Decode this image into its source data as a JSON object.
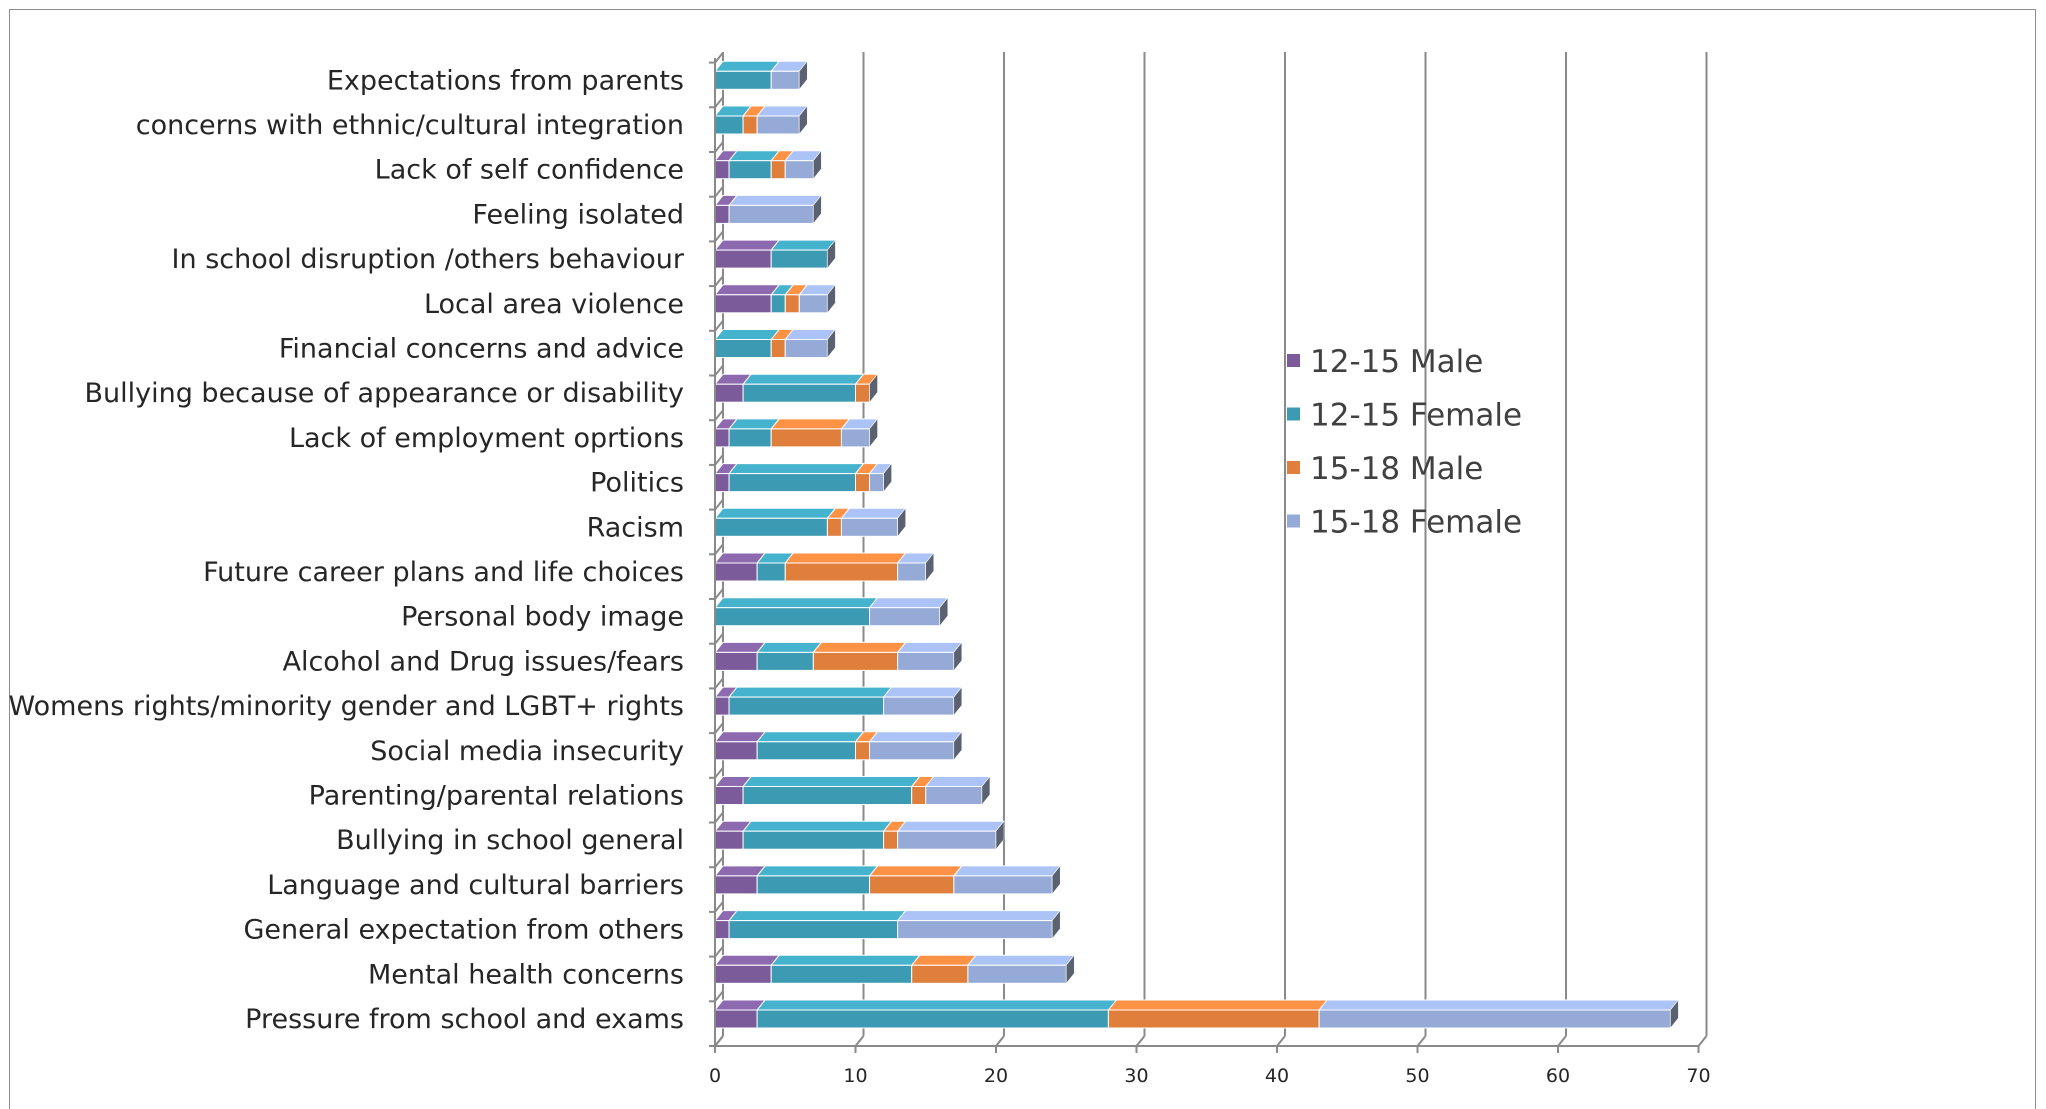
{
  "chart_data": {
    "type": "bar",
    "orientation": "horizontal",
    "stacked": true,
    "categories": [
      "Pressure from school and exams",
      "Mental health concerns",
      "General expectation from others",
      "Language and cultural barriers",
      "Bullying in school general",
      "Parenting/parental relations",
      "Social media insecurity",
      "Womens rights/minority gender and LGBT+ rights",
      "Alcohol and Drug issues/fears",
      "Personal body image",
      "Future career plans and life choices",
      "Racism",
      "Politics",
      "Lack of employment oprtions",
      "Bullying because of appearance or disability",
      "Financial concerns and advice",
      "Local area  violence",
      "In school disruption /others behaviour",
      "Feeling isolated",
      "Lack of self confidence",
      "concerns with ethnic/cultural integration",
      "Expectations from parents"
    ],
    "series": [
      {
        "name": "12-15 Male",
        "color": "#7b5b99",
        "values": [
          3,
          4,
          1,
          3,
          2,
          2,
          3,
          1,
          3,
          0,
          3,
          0,
          1,
          1,
          2,
          0,
          4,
          4,
          1,
          1,
          0,
          0
        ]
      },
      {
        "name": "12-15 Female",
        "color": "#3c9bb3",
        "values": [
          25,
          10,
          12,
          8,
          10,
          12,
          7,
          11,
          4,
          11,
          2,
          8,
          9,
          3,
          8,
          4,
          1,
          4,
          0,
          3,
          2,
          4
        ]
      },
      {
        "name": "15-18 Male",
        "color": "#e07f3c",
        "values": [
          15,
          4,
          0,
          6,
          1,
          1,
          1,
          0,
          6,
          0,
          8,
          1,
          1,
          5,
          1,
          1,
          1,
          0,
          0,
          1,
          1,
          0
        ]
      },
      {
        "name": "15-18 Female",
        "color": "#95aad6",
        "values": [
          25,
          7,
          11,
          7,
          7,
          4,
          6,
          5,
          4,
          5,
          2,
          4,
          1,
          2,
          0,
          3,
          2,
          0,
          6,
          2,
          3,
          2
        ]
      }
    ],
    "x_ticks": [
      "0",
      "10",
      "20",
      "30",
      "40",
      "50",
      "60",
      "70"
    ],
    "xlim": [
      0,
      70
    ],
    "grid": true,
    "legend_position": "right-middle"
  }
}
